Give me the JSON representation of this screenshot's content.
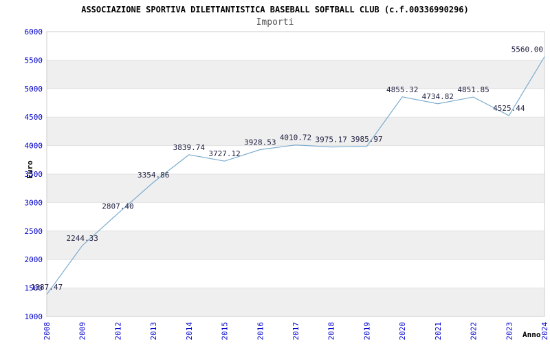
{
  "chart_data": {
    "type": "line",
    "title": "ASSOCIAZIONE SPORTIVA DILETTANTISTICA BASEBALL SOFTBALL CLUB (c.f.00336990296)",
    "subtitle": "Importi",
    "xlabel": "Anno",
    "ylabel": "Euro",
    "categories": [
      "2008",
      "2009",
      "2012",
      "2013",
      "2014",
      "2015",
      "2016",
      "2017",
      "2018",
      "2019",
      "2020",
      "2021",
      "2022",
      "2023",
      "2024"
    ],
    "values": [
      1387.47,
      2244.33,
      2807.4,
      3354.86,
      3839.74,
      3727.12,
      3928.53,
      4010.72,
      3975.17,
      3985.97,
      4855.32,
      4734.82,
      4851.85,
      4525.44,
      5560.0
    ],
    "point_labels": [
      "1387.47",
      "2244.33",
      "2807.40",
      "3354.86",
      "3839.74",
      "3727.12",
      "3928.53",
      "4010.72",
      "3975.17",
      "3985.97",
      "4855.32",
      "4734.82",
      "4851.85",
      "4525.44",
      "5560.00"
    ],
    "ylim": [
      1000,
      6000
    ],
    "ytick_step": 500,
    "ytick_labels": [
      "1000",
      "1500",
      "2000",
      "2500",
      "3000",
      "3500",
      "4000",
      "4500",
      "5000",
      "5500",
      "6000"
    ],
    "grid": true,
    "legend": "none",
    "colors": {
      "line": "#7aaccf",
      "tick_label": "#0000cc",
      "point_label": "#222244",
      "band_gray": "#efefef",
      "band_white": "#ffffff",
      "grid_line": "#e2e2e2",
      "frame": "#cccccc",
      "title": "#000000",
      "subtitle": "#555555"
    }
  }
}
